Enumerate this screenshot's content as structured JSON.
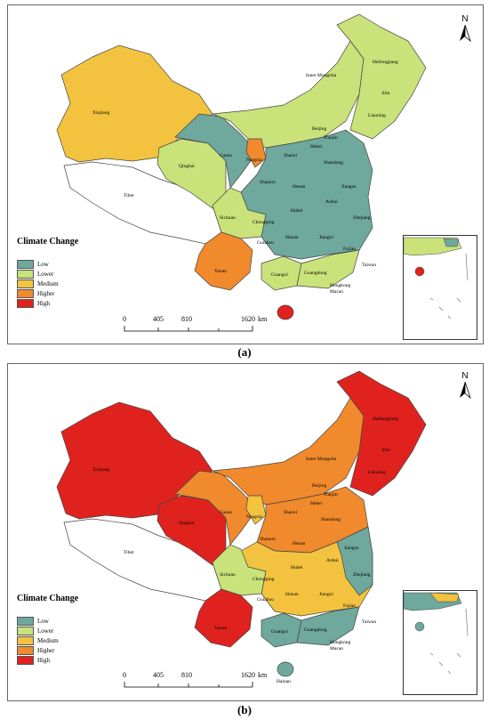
{
  "legend": {
    "title": "Climate Change",
    "items": [
      {
        "label": "Low",
        "color": "#6fa89c"
      },
      {
        "label": "Lower",
        "color": "#c9e27a"
      },
      {
        "label": "Medium",
        "color": "#f3c33f"
      },
      {
        "label": "Higher",
        "color": "#f08a2c"
      },
      {
        "label": "High",
        "color": "#e0221e"
      }
    ]
  },
  "north_label": "N",
  "scale": {
    "ticks": [
      "0",
      "405",
      "810",
      "1620"
    ],
    "unit": "km"
  },
  "panels": [
    {
      "caption": "(a)",
      "labels": {
        "xinjiang": "Xinjiang",
        "tibet": "Tibet",
        "qinghai": "Qinghai",
        "gansu": "Gansu",
        "ningxia": "Ningxia",
        "inner_mongolia": "Inner Mongolia",
        "heilongjiang": "Heilongjiang",
        "jilin": "Jilin",
        "liaoning": "Liaoning",
        "beijing": "Beijing",
        "tianjin": "Tianjin",
        "hebei": "Hebei",
        "shanxi": "Shanxi",
        "shandong": "Shandong",
        "shaanxi": "Shaanxi",
        "henan": "Henan",
        "jiangsu": "Jiangsu",
        "anhui": "Anhui",
        "hubei": "Hubei",
        "sichuan": "Sichuan",
        "chongqing": "Chongqing",
        "zhejiang": "Zhejiang",
        "hunan": "Hunan",
        "jiangxi": "Jiangxi",
        "guizhou": "Guizhou",
        "fujian": "Fujian",
        "yunan": "Yunan",
        "guangxi": "Guangxi",
        "guangdong": "Guangdong",
        "taiwan": "Taiwan",
        "hongkong": "Hongkong",
        "macao": "Macao"
      },
      "levels": {
        "xinjiang": "Medium",
        "tibet": "None",
        "qinghai": "Lower",
        "gansu": "Low",
        "ningxia": "Higher",
        "inner_mongolia": "Lower",
        "northeast": "Lower",
        "north": "Low",
        "sichuan": "Lower",
        "yunan": "Higher",
        "guangxi": "Lower",
        "guangdong": "Lower",
        "hainan": "High",
        "east": "Low"
      }
    },
    {
      "caption": "(b)",
      "labels": {
        "xinjiang": "Xinjiang",
        "tibet": "Tibet",
        "qinghai": "Qinghai",
        "gansu": "Gansu",
        "ningxia": "Ningxia",
        "inner_mongolia": "Inner Mongolia",
        "heilongjiang": "Heilongjiang",
        "jilin": "Jilin",
        "liaoning": "Liaoning",
        "beijing": "Beijing",
        "tianjin": "Tianjin",
        "hebei": "Hebei",
        "shanxi": "Shanxi",
        "shandong": "Shandong",
        "shaanxi": "Shaanxi",
        "henan": "Henan",
        "jiangsu": "Jiangsu",
        "anhui": "Anhui",
        "hubei": "Hubei",
        "sichuan": "Sichuan",
        "chongqing": "Chongqing",
        "zhejiang": "Zhejiang",
        "hunan": "Hunan",
        "jiangxi": "Jiangxi",
        "guizhou": "Guizhou",
        "fujian": "Fujian",
        "yunan": "Yunan",
        "guangxi": "Guangxi",
        "guangdong": "Guangdong",
        "taiwan": "Taiwan",
        "hongkong": "Hongkong",
        "macao": "Macao",
        "hainan": "Hainan"
      },
      "levels": {
        "xinjiang": "High",
        "tibet": "None",
        "qinghai": "High",
        "gansu": "Higher",
        "ningxia": "Medium",
        "inner_mongolia": "Higher",
        "northeast": "High",
        "north": "Higher",
        "sichuan": "Lower",
        "yunan": "High",
        "guangxi": "Low",
        "guangdong": "Low",
        "hainan": "Low",
        "east": "Medium"
      }
    }
  ]
}
